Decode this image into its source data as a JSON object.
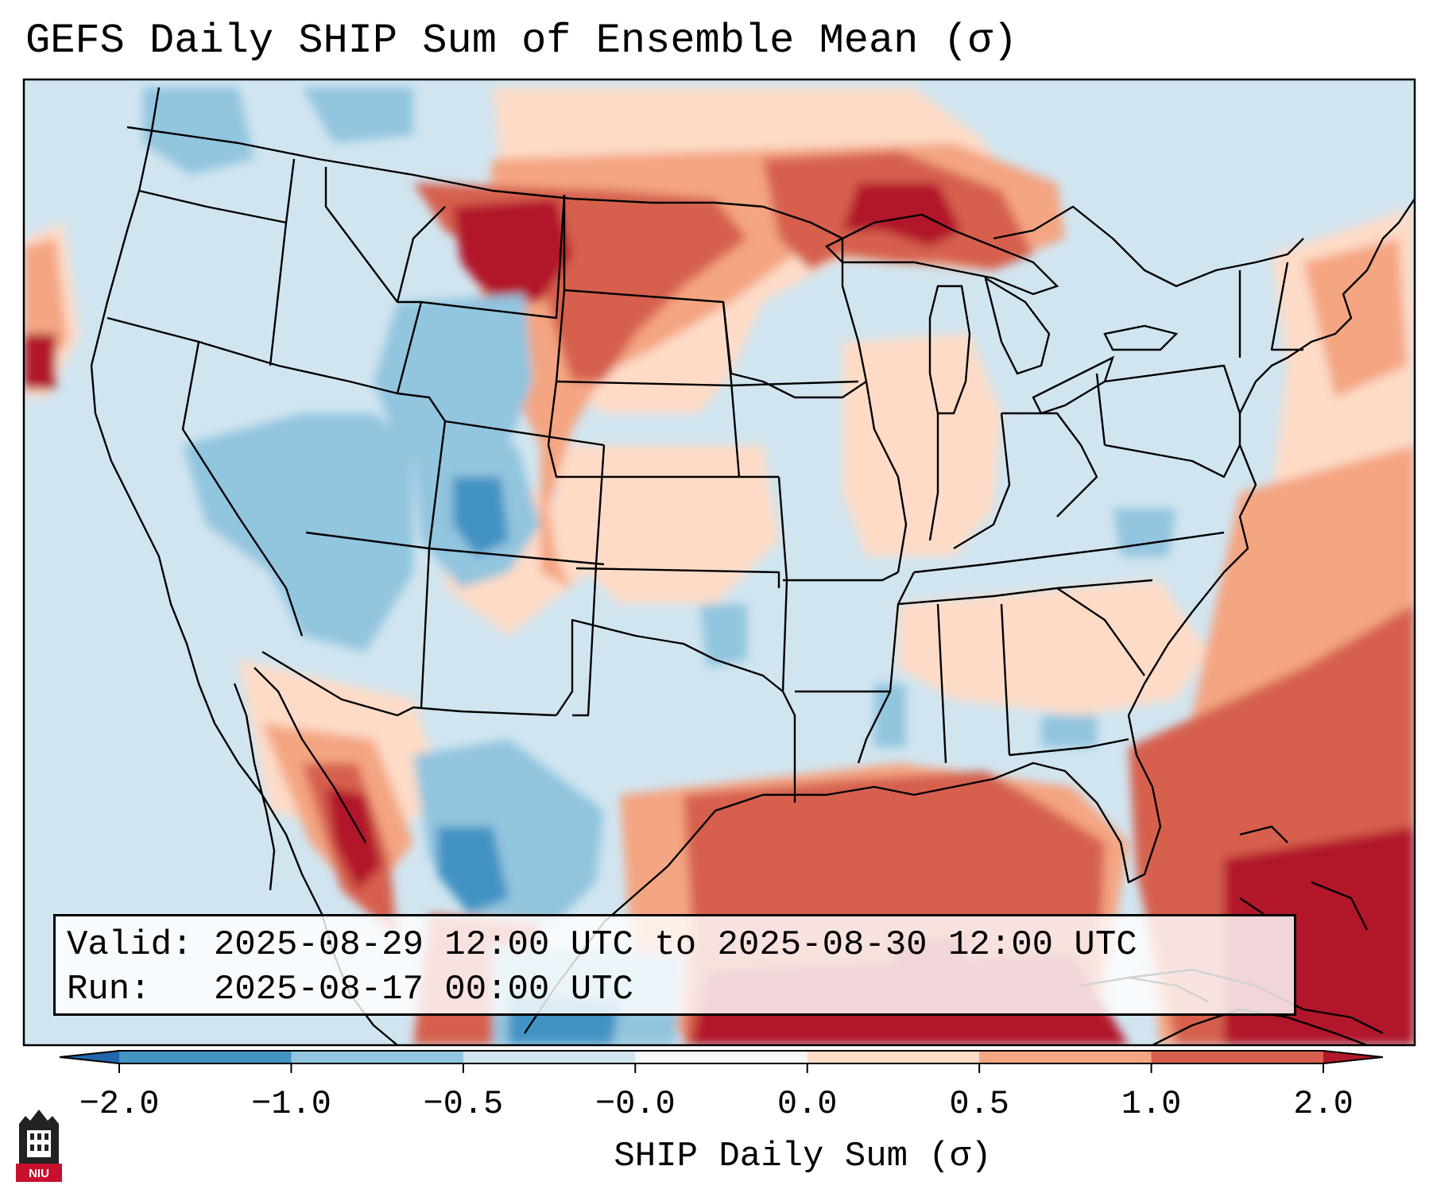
{
  "title": "GEFS Daily SHIP Sum of Ensemble Mean (σ)",
  "info": {
    "valid_label": "Valid:",
    "valid_value": "2025-08-29 12:00 UTC to 2025-08-30 12:00 UTC",
    "run_label": "Run:",
    "run_value": "2025-08-17 00:00 UTC"
  },
  "colorbar": {
    "label": "SHIP Daily Sum (σ)",
    "ticks": [
      "−2.0",
      "−1.0",
      "−0.5",
      "−0.0",
      "0.0",
      "0.5",
      "1.0",
      "2.0"
    ],
    "bins": [
      {
        "range": "< -2.0",
        "color": "#2166ac"
      },
      {
        "range": "-2.0 to -1.0",
        "color": "#4393c3"
      },
      {
        "range": "-1.0 to -0.5",
        "color": "#92c5de"
      },
      {
        "range": "-0.5 to -0.0",
        "color": "#d1e5f0"
      },
      {
        "range": "-0.0 to 0.0",
        "color": "#f7f7f7"
      },
      {
        "range": "0.0 to 0.5",
        "color": "#fddbc7"
      },
      {
        "range": "0.5 to 1.0",
        "color": "#f4a582"
      },
      {
        "range": "1.0 to 2.0",
        "color": "#d6604d"
      },
      {
        "range": "> 2.0",
        "color": "#b2182b"
      }
    ]
  },
  "logo": {
    "text": "NIU",
    "color": "#c8102e"
  },
  "map": {
    "projection": "Lambert conformal (CONUS)",
    "background_color": "#d1e5f0",
    "regions": [
      {
        "name": "northern-plains-maximum",
        "value": "> 2.0",
        "color": "#b2182b"
      },
      {
        "name": "upper-great-lakes-maximum",
        "value": "1.0 to 2.0",
        "color": "#d6604d"
      },
      {
        "name": "gulf-of-mexico-maximum",
        "value": "1.0 to 2.0",
        "color": "#d6604d"
      },
      {
        "name": "western-atlantic-maximum",
        "value": "> 2.0",
        "color": "#b2182b"
      },
      {
        "name": "sierra-madre-maximum",
        "value": "> 2.0",
        "color": "#b2182b"
      },
      {
        "name": "southwest-minimum",
        "value": "-1.0 to -0.5",
        "color": "#92c5de"
      },
      {
        "name": "colorado-minimum",
        "value": "-2.0 to -1.0",
        "color": "#4393c3"
      },
      {
        "name": "northern-mexico-minimum",
        "value": "-2.0 to -1.0",
        "color": "#4393c3"
      }
    ]
  }
}
